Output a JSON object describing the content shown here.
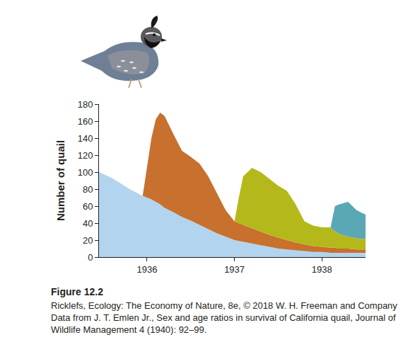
{
  "chart_data": {
    "type": "area",
    "stacked": true,
    "ylabel": "Number of quail",
    "x": [
      1935.45,
      1935.6,
      1935.8,
      1935.95,
      1936.05,
      1936.1,
      1936.15,
      1936.2,
      1936.3,
      1936.4,
      1936.5,
      1936.6,
      1936.7,
      1936.8,
      1936.9,
      1937.0,
      1937.05,
      1937.1,
      1937.2,
      1937.3,
      1937.4,
      1937.5,
      1937.6,
      1937.7,
      1937.8,
      1937.9,
      1938.0,
      1938.1,
      1938.15,
      1938.2,
      1938.3,
      1938.4,
      1938.5
    ],
    "series": [
      {
        "color": "#b3d4ee",
        "values": [
          100,
          93,
          80,
          72,
          68,
          65,
          62,
          58,
          53,
          47,
          43,
          38,
          33,
          28,
          24,
          20,
          19,
          18,
          16,
          14,
          12,
          10,
          9,
          8,
          7,
          6,
          6,
          5,
          5,
          5,
          5,
          5,
          5
        ]
      },
      {
        "color": "#c8702e",
        "values": [
          0,
          0,
          0,
          0,
          72,
          97,
          108,
          108,
          92,
          78,
          75,
          72,
          62,
          47,
          31,
          22,
          21,
          20,
          18,
          16,
          14,
          13,
          11,
          9,
          8,
          7,
          6,
          6,
          6,
          5,
          5,
          4,
          4
        ]
      },
      {
        "color": "#b5b81a",
        "values": [
          0,
          0,
          0,
          0,
          0,
          0,
          0,
          0,
          0,
          0,
          0,
          0,
          0,
          0,
          0,
          0,
          30,
          57,
          71,
          70,
          66,
          61,
          58,
          45,
          27,
          24,
          23,
          24,
          19,
          17,
          14,
          13,
          12
        ]
      },
      {
        "color": "#5ba8b5",
        "values": [
          0,
          0,
          0,
          0,
          0,
          0,
          0,
          0,
          0,
          0,
          0,
          0,
          0,
          0,
          0,
          0,
          0,
          0,
          0,
          0,
          0,
          0,
          0,
          0,
          0,
          0,
          0,
          0,
          30,
          35,
          41,
          33,
          29
        ]
      }
    ],
    "xlim": [
      1935.45,
      1938.5
    ],
    "xticks": [
      1936,
      1937,
      1938
    ],
    "ylim": [
      0,
      180
    ],
    "yticks": [
      0,
      20,
      40,
      60,
      80,
      100,
      120,
      140,
      160,
      180
    ],
    "grid": false
  },
  "caption": {
    "figure": "Figure 12.2",
    "credit": "Ricklefs, Ecology: The Economy of Nature, 8e, © 2018 W. H. Freeman and Company",
    "source": "Data from J. T. Emlen Jr., Sex and age ratios in survival of California quail, Journal of Wildlife Management 4 (1940): 92–99."
  }
}
